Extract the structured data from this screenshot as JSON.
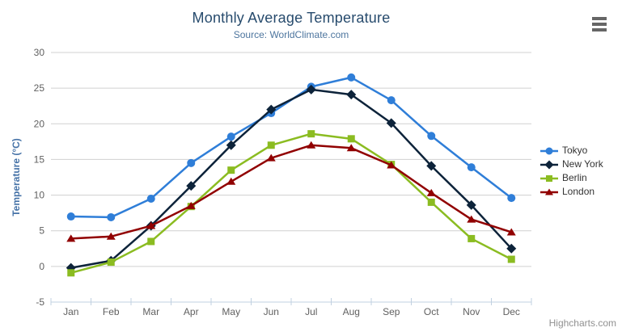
{
  "credit": {
    "label": "Highcharts.com"
  },
  "icons": {
    "menu": "hamburger-icon"
  },
  "colors": {
    "background": "#ffffff",
    "title": "#274b6d",
    "subtitle": "#4d759e",
    "yaxis_title": "#4572a7",
    "axis_labels": "#606060",
    "grid": "#d0d0d0",
    "axis_line": "#c0d0e0",
    "legend_text": "#333333",
    "credit": "#909090",
    "menu_icon": "#666666"
  },
  "chart_data": {
    "type": "line",
    "title": "Monthly Average Temperature",
    "subtitle": "Source: WorldClimate.com",
    "categories": [
      "Jan",
      "Feb",
      "Mar",
      "Apr",
      "May",
      "Jun",
      "Jul",
      "Aug",
      "Sep",
      "Oct",
      "Nov",
      "Dec"
    ],
    "xlabel": "",
    "ylabel": "Temperature (°C)",
    "ylim": [
      -5,
      30
    ],
    "ytick_interval": 5,
    "grid": true,
    "legend_position": "right",
    "series": [
      {
        "name": "Tokyo",
        "color": "#2f7ed8",
        "marker": "circle",
        "values": [
          7.0,
          6.9,
          9.5,
          14.5,
          18.2,
          21.5,
          25.2,
          26.5,
          23.3,
          18.3,
          13.9,
          9.6
        ]
      },
      {
        "name": "New York",
        "color": "#0d233a",
        "marker": "diamond",
        "values": [
          -0.2,
          0.8,
          5.7,
          11.3,
          17.0,
          22.0,
          24.8,
          24.1,
          20.1,
          14.1,
          8.6,
          2.5
        ]
      },
      {
        "name": "Berlin",
        "color": "#8bbc21",
        "marker": "square",
        "values": [
          -0.9,
          0.6,
          3.5,
          8.4,
          13.5,
          17.0,
          18.6,
          17.9,
          14.3,
          9.0,
          3.9,
          1.0
        ]
      },
      {
        "name": "London",
        "color": "#910000",
        "marker": "triangle-up",
        "values": [
          3.9,
          4.2,
          5.7,
          8.5,
          11.9,
          15.2,
          17.0,
          16.6,
          14.2,
          10.3,
          6.6,
          4.8
        ]
      }
    ]
  }
}
